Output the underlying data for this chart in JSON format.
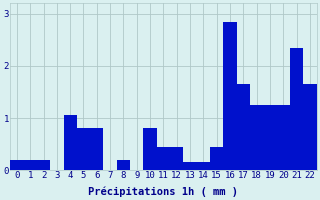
{
  "hours": [
    0,
    1,
    2,
    3,
    4,
    5,
    6,
    7,
    8,
    9,
    10,
    11,
    12,
    13,
    14,
    15,
    16,
    17,
    18,
    19,
    20,
    21,
    22
  ],
  "values": [
    0.2,
    0.2,
    0.2,
    0.0,
    1.05,
    0.8,
    0.8,
    0.0,
    0.2,
    0.0,
    0.8,
    0.45,
    0.45,
    0.15,
    0.15,
    0.45,
    2.85,
    1.65,
    1.25,
    1.25,
    1.25,
    2.35,
    1.65
  ],
  "bar_color": "#0011cc",
  "background_color": "#daf0f0",
  "grid_color": "#b0c8c8",
  "text_color": "#00008b",
  "xlabel": "Précipitations 1h ( mm )",
  "ylim": [
    0,
    3.2
  ],
  "yticks": [
    0,
    1,
    2,
    3
  ],
  "label_fontsize": 7.5,
  "tick_fontsize": 6.5
}
